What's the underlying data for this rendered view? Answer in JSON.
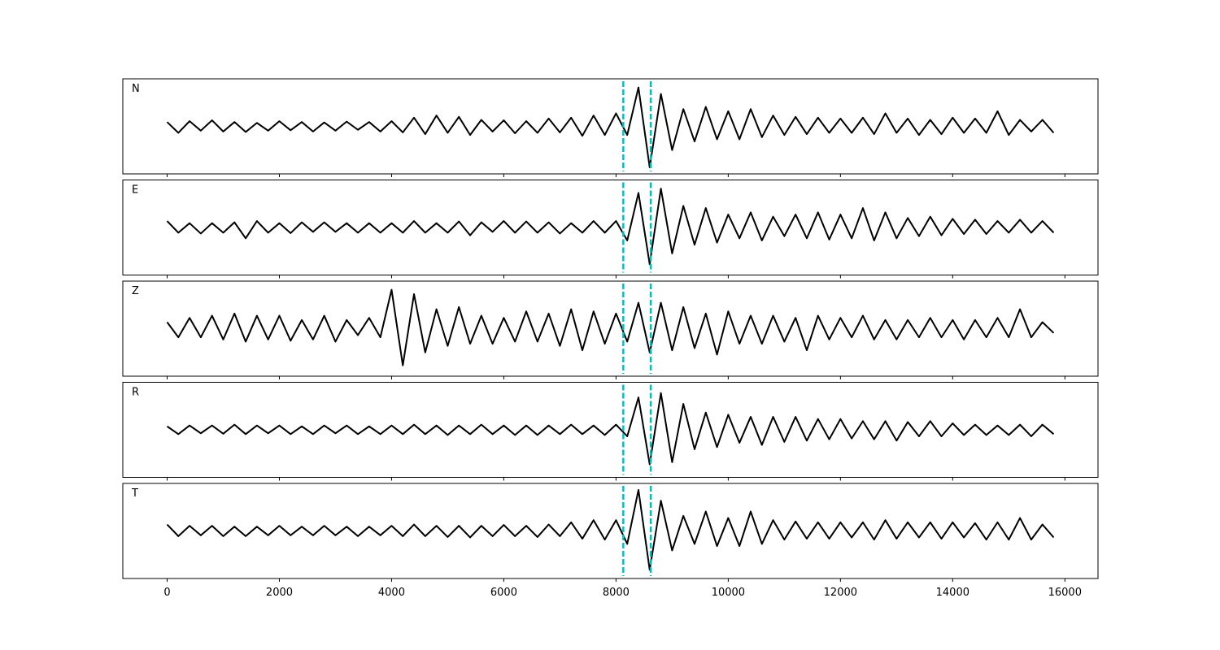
{
  "chart_data": {
    "type": "line",
    "layout": "stacked",
    "color": "#000000",
    "x": [
      0,
      200,
      400,
      600,
      800,
      1000,
      1200,
      1400,
      1600,
      1800,
      2000,
      2200,
      2400,
      2600,
      2800,
      3000,
      3200,
      3400,
      3600,
      3800,
      4000,
      4200,
      4400,
      4600,
      4800,
      5000,
      5200,
      5400,
      5600,
      5800,
      6000,
      6200,
      6400,
      6600,
      6800,
      7000,
      7200,
      7400,
      7600,
      7800,
      8000,
      8200,
      8400,
      8600,
      8800,
      9000,
      9200,
      9400,
      9600,
      9800,
      10000,
      10200,
      10400,
      10600,
      10800,
      11000,
      11200,
      11400,
      11600,
      11800,
      12000,
      12200,
      12400,
      12600,
      12800,
      13000,
      13200,
      13400,
      13600,
      13800,
      14000,
      14200,
      14400,
      14600,
      14800,
      15000,
      15200,
      15400,
      15600,
      15800
    ],
    "xlim": [
      -790,
      16590
    ],
    "xticks": [
      0,
      2000,
      4000,
      6000,
      8000,
      10000,
      12000,
      14000,
      16000
    ],
    "ylim": [
      -1.1,
      1.1
    ],
    "vlines": {
      "values": [
        8130,
        8620
      ],
      "color": "#00bfbf",
      "style": "dashed"
    },
    "series": [
      {
        "name": "N",
        "values": [
          0.1,
          -0.15,
          0.12,
          -0.1,
          0.14,
          -0.12,
          0.1,
          -0.13,
          0.08,
          -0.1,
          0.12,
          -0.09,
          0.1,
          -0.12,
          0.09,
          -0.1,
          0.11,
          -0.08,
          0.1,
          -0.12,
          0.12,
          -0.14,
          0.2,
          -0.18,
          0.25,
          -0.15,
          0.22,
          -0.2,
          0.15,
          -0.12,
          0.14,
          -0.16,
          0.12,
          -0.15,
          0.18,
          -0.14,
          0.2,
          -0.22,
          0.25,
          -0.2,
          0.3,
          -0.2,
          0.9,
          -0.95,
          0.75,
          -0.55,
          0.4,
          -0.35,
          0.45,
          -0.3,
          0.35,
          -0.3,
          0.4,
          -0.25,
          0.25,
          -0.2,
          0.22,
          -0.18,
          0.2,
          -0.15,
          0.18,
          -0.15,
          0.2,
          -0.18,
          0.3,
          -0.15,
          0.18,
          -0.2,
          0.15,
          -0.18,
          0.2,
          -0.15,
          0.18,
          -0.15,
          0.35,
          -0.2,
          0.15,
          -0.12,
          0.15,
          -0.15
        ]
      },
      {
        "name": "E",
        "values": [
          0.15,
          -0.12,
          0.1,
          -0.14,
          0.1,
          -0.12,
          0.12,
          -0.25,
          0.15,
          -0.12,
          0.1,
          -0.13,
          0.12,
          -0.1,
          0.12,
          -0.1,
          0.1,
          -0.12,
          0.1,
          -0.12,
          0.1,
          -0.12,
          0.15,
          -0.12,
          0.1,
          -0.12,
          0.14,
          -0.18,
          0.12,
          -0.1,
          0.15,
          -0.12,
          0.14,
          -0.12,
          0.12,
          -0.14,
          0.1,
          -0.12,
          0.15,
          -0.12,
          0.15,
          -0.3,
          0.8,
          -0.85,
          0.9,
          -0.6,
          0.5,
          -0.4,
          0.45,
          -0.35,
          0.3,
          -0.25,
          0.35,
          -0.3,
          0.25,
          -0.2,
          0.3,
          -0.25,
          0.35,
          -0.28,
          0.3,
          -0.25,
          0.45,
          -0.3,
          0.35,
          -0.25,
          0.22,
          -0.2,
          0.25,
          -0.18,
          0.2,
          -0.15,
          0.18,
          -0.15,
          0.15,
          -0.12,
          0.18,
          -0.12,
          0.15,
          -0.12
        ]
      },
      {
        "name": "Z",
        "values": [
          0.15,
          -0.2,
          0.25,
          -0.2,
          0.3,
          -0.25,
          0.35,
          -0.3,
          0.3,
          -0.25,
          0.3,
          -0.28,
          0.2,
          -0.25,
          0.3,
          -0.3,
          0.2,
          -0.15,
          0.25,
          -0.2,
          0.9,
          -0.85,
          0.8,
          -0.55,
          0.45,
          -0.4,
          0.5,
          -0.35,
          0.3,
          -0.35,
          0.25,
          -0.3,
          0.4,
          -0.3,
          0.35,
          -0.4,
          0.45,
          -0.5,
          0.4,
          -0.35,
          0.35,
          -0.3,
          0.6,
          -0.55,
          0.6,
          -0.5,
          0.5,
          -0.45,
          0.35,
          -0.6,
          0.4,
          -0.35,
          0.3,
          -0.35,
          0.3,
          -0.3,
          0.25,
          -0.5,
          0.3,
          -0.25,
          0.25,
          -0.2,
          0.3,
          -0.25,
          0.2,
          -0.25,
          0.2,
          -0.2,
          0.25,
          -0.2,
          0.2,
          -0.25,
          0.2,
          -0.2,
          0.25,
          -0.2,
          0.45,
          -0.2,
          0.15,
          -0.1
        ]
      },
      {
        "name": "R",
        "values": [
          0.08,
          -0.1,
          0.1,
          -0.08,
          0.1,
          -0.09,
          0.12,
          -0.1,
          0.1,
          -0.08,
          0.1,
          -0.1,
          0.08,
          -0.1,
          0.1,
          -0.08,
          0.1,
          -0.1,
          0.08,
          -0.1,
          0.1,
          -0.1,
          0.12,
          -0.1,
          0.1,
          -0.12,
          0.1,
          -0.1,
          0.12,
          -0.1,
          0.1,
          -0.12,
          0.1,
          -0.12,
          0.1,
          -0.1,
          0.12,
          -0.1,
          0.1,
          -0.12,
          0.12,
          -0.15,
          0.75,
          -0.8,
          0.85,
          -0.75,
          0.6,
          -0.45,
          0.4,
          -0.4,
          0.35,
          -0.3,
          0.3,
          -0.35,
          0.3,
          -0.28,
          0.3,
          -0.25,
          0.25,
          -0.22,
          0.25,
          -0.2,
          0.2,
          -0.22,
          0.2,
          -0.25,
          0.18,
          -0.15,
          0.2,
          -0.15,
          0.15,
          -0.12,
          0.12,
          -0.12,
          0.1,
          -0.12,
          0.12,
          -0.15,
          0.12,
          -0.1
        ]
      },
      {
        "name": "T",
        "values": [
          0.15,
          -0.12,
          0.12,
          -0.1,
          0.12,
          -0.12,
          0.1,
          -0.12,
          0.1,
          -0.1,
          0.12,
          -0.1,
          0.1,
          -0.1,
          0.12,
          -0.1,
          0.1,
          -0.12,
          0.1,
          -0.1,
          0.12,
          -0.12,
          0.15,
          -0.12,
          0.12,
          -0.14,
          0.12,
          -0.15,
          0.12,
          -0.12,
          0.14,
          -0.12,
          0.12,
          -0.14,
          0.15,
          -0.12,
          0.2,
          -0.18,
          0.25,
          -0.2,
          0.25,
          -0.3,
          0.95,
          -0.9,
          0.7,
          -0.45,
          0.35,
          -0.3,
          0.45,
          -0.35,
          0.3,
          -0.35,
          0.45,
          -0.3,
          0.25,
          -0.2,
          0.22,
          -0.18,
          0.2,
          -0.18,
          0.2,
          -0.15,
          0.2,
          -0.2,
          0.25,
          -0.18,
          0.2,
          -0.15,
          0.2,
          -0.18,
          0.2,
          -0.15,
          0.18,
          -0.2,
          0.2,
          -0.2,
          0.3,
          -0.2,
          0.15,
          -0.15
        ]
      }
    ]
  }
}
